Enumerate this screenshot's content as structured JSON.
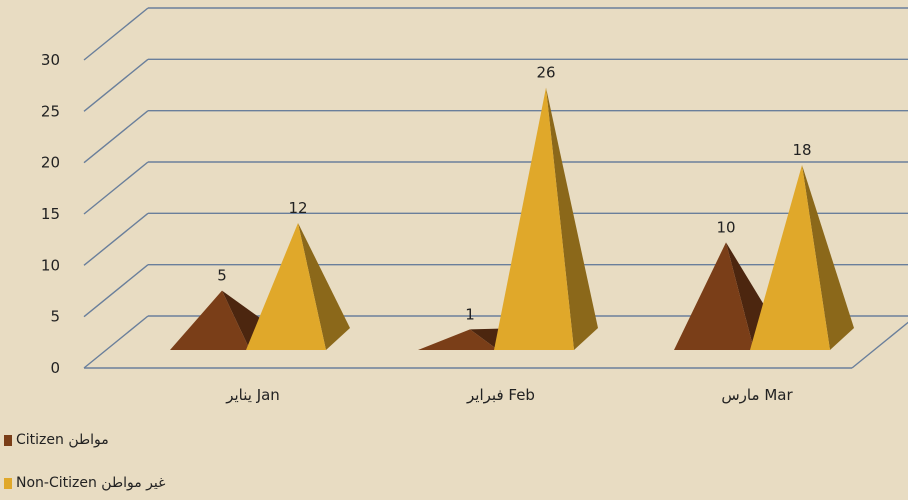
{
  "chart_data": {
    "type": "bar",
    "bar_shape": "pyramid-3d",
    "categories": [
      "يناير Jan",
      "فبراير Feb",
      "مارس Mar"
    ],
    "series": [
      {
        "name": "Citizen مواطن",
        "values": [
          5,
          1,
          10
        ],
        "color": "#7a3e18"
      },
      {
        "name": "Non-Citizen غير مواطن",
        "values": [
          12,
          26,
          18
        ],
        "color": "#e0a82a"
      }
    ],
    "y_ticks": [
      "0",
      "5",
      "10",
      "15",
      "20",
      "25",
      "30"
    ],
    "ylim": [
      0,
      30
    ],
    "grid": true,
    "legend_position": "bottom-left",
    "data_labels": true
  },
  "colors": {
    "background": "#e8dcc2",
    "gridlines": "#6a7f9b"
  }
}
